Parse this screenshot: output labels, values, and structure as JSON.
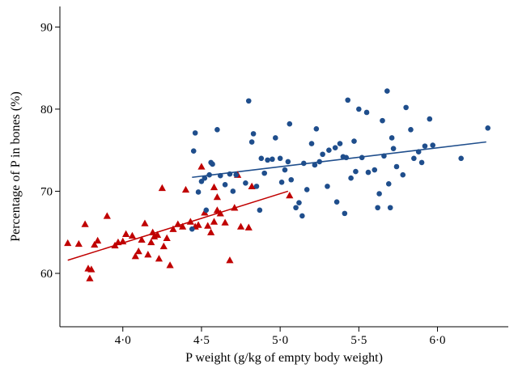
{
  "chart_data": {
    "type": "scatter",
    "xlabel": "P weight (g/kg of empty body weight)",
    "ylabel": "Percentage of P in bones (%)",
    "xlim": [
      3.6,
      6.45
    ],
    "ylim": [
      53.5,
      92.5
    ],
    "xticks": [
      4.0,
      4.5,
      5.0,
      5.5,
      6.0
    ],
    "xtick_labels": [
      "4·0",
      "4·5",
      "5·0",
      "5·5",
      "6·0"
    ],
    "yticks": [
      60,
      70,
      80,
      90
    ],
    "ytick_labels": [
      "60",
      "70",
      "80",
      "90"
    ],
    "grid": false,
    "legend": "none",
    "series": [
      {
        "marker": "triangle",
        "color": "#c00000",
        "points": [
          [
            3.65,
            63.7
          ],
          [
            3.72,
            63.6
          ],
          [
            3.76,
            66.0
          ],
          [
            3.78,
            60.6
          ],
          [
            3.79,
            59.4
          ],
          [
            3.8,
            60.5
          ],
          [
            3.82,
            63.5
          ],
          [
            3.84,
            64.0
          ],
          [
            3.9,
            67.0
          ],
          [
            3.95,
            63.4
          ],
          [
            3.97,
            63.8
          ],
          [
            4.0,
            63.9
          ],
          [
            4.02,
            64.8
          ],
          [
            4.06,
            64.6
          ],
          [
            4.08,
            62.1
          ],
          [
            4.1,
            62.7
          ],
          [
            4.12,
            64.1
          ],
          [
            4.14,
            66.1
          ],
          [
            4.16,
            62.3
          ],
          [
            4.18,
            63.8
          ],
          [
            4.19,
            65.0
          ],
          [
            4.2,
            64.5
          ],
          [
            4.22,
            64.7
          ],
          [
            4.23,
            61.8
          ],
          [
            4.25,
            70.4
          ],
          [
            4.26,
            63.3
          ],
          [
            4.28,
            64.3
          ],
          [
            4.3,
            61.0
          ],
          [
            4.32,
            65.4
          ],
          [
            4.35,
            66.0
          ],
          [
            4.38,
            65.7
          ],
          [
            4.4,
            70.2
          ],
          [
            4.43,
            66.3
          ],
          [
            4.46,
            65.7
          ],
          [
            4.48,
            65.9
          ],
          [
            4.5,
            73.0
          ],
          [
            4.52,
            67.4
          ],
          [
            4.54,
            65.8
          ],
          [
            4.56,
            65.0
          ],
          [
            4.58,
            66.3
          ],
          [
            4.58,
            70.5
          ],
          [
            4.6,
            69.3
          ],
          [
            4.6,
            67.7
          ],
          [
            4.62,
            67.3
          ],
          [
            4.65,
            66.2
          ],
          [
            4.68,
            61.6
          ],
          [
            4.71,
            68.0
          ],
          [
            4.73,
            72.0
          ],
          [
            4.75,
            65.7
          ],
          [
            4.8,
            65.6
          ],
          [
            4.82,
            70.6
          ],
          [
            5.06,
            69.5
          ]
        ]
      },
      {
        "marker": "circle",
        "color": "#1f4e8c",
        "points": [
          [
            4.44,
            65.4
          ],
          [
            4.45,
            74.9
          ],
          [
            4.46,
            77.1
          ],
          [
            4.48,
            69.9
          ],
          [
            4.5,
            71.2
          ],
          [
            4.52,
            71.6
          ],
          [
            4.53,
            67.7
          ],
          [
            4.55,
            72.0
          ],
          [
            4.56,
            73.5
          ],
          [
            4.57,
            73.3
          ],
          [
            4.6,
            77.5
          ],
          [
            4.62,
            71.9
          ],
          [
            4.65,
            70.8
          ],
          [
            4.68,
            72.1
          ],
          [
            4.7,
            70.0
          ],
          [
            4.72,
            72.0
          ],
          [
            4.78,
            71.0
          ],
          [
            4.8,
            81.0
          ],
          [
            4.82,
            76.0
          ],
          [
            4.83,
            77.0
          ],
          [
            4.85,
            70.6
          ],
          [
            4.87,
            67.7
          ],
          [
            4.88,
            74.0
          ],
          [
            4.9,
            72.2
          ],
          [
            4.92,
            73.8
          ],
          [
            4.95,
            73.9
          ],
          [
            4.97,
            76.5
          ],
          [
            5.0,
            74.0
          ],
          [
            5.01,
            71.1
          ],
          [
            5.03,
            72.6
          ],
          [
            5.05,
            73.6
          ],
          [
            5.06,
            78.2
          ],
          [
            5.07,
            71.4
          ],
          [
            5.1,
            68.0
          ],
          [
            5.12,
            68.6
          ],
          [
            5.14,
            67.0
          ],
          [
            5.15,
            73.4
          ],
          [
            5.17,
            70.2
          ],
          [
            5.2,
            75.8
          ],
          [
            5.22,
            73.2
          ],
          [
            5.23,
            77.6
          ],
          [
            5.25,
            73.6
          ],
          [
            5.27,
            74.5
          ],
          [
            5.3,
            70.6
          ],
          [
            5.31,
            75.0
          ],
          [
            5.35,
            75.3
          ],
          [
            5.36,
            68.7
          ],
          [
            5.38,
            75.8
          ],
          [
            5.4,
            74.2
          ],
          [
            5.41,
            67.3
          ],
          [
            5.42,
            74.1
          ],
          [
            5.43,
            81.1
          ],
          [
            5.45,
            71.6
          ],
          [
            5.47,
            76.1
          ],
          [
            5.48,
            72.4
          ],
          [
            5.5,
            80.0
          ],
          [
            5.52,
            74.1
          ],
          [
            5.55,
            79.6
          ],
          [
            5.56,
            72.3
          ],
          [
            5.6,
            72.6
          ],
          [
            5.62,
            68.0
          ],
          [
            5.63,
            69.7
          ],
          [
            5.65,
            78.6
          ],
          [
            5.66,
            74.3
          ],
          [
            5.68,
            82.2
          ],
          [
            5.69,
            70.9
          ],
          [
            5.7,
            68.0
          ],
          [
            5.71,
            76.5
          ],
          [
            5.72,
            75.2
          ],
          [
            5.74,
            73.0
          ],
          [
            5.78,
            72.0
          ],
          [
            5.8,
            80.2
          ],
          [
            5.83,
            77.5
          ],
          [
            5.85,
            74.0
          ],
          [
            5.88,
            74.8
          ],
          [
            5.9,
            73.5
          ],
          [
            5.92,
            75.5
          ],
          [
            5.95,
            78.8
          ],
          [
            5.97,
            75.6
          ],
          [
            6.15,
            74.0
          ],
          [
            6.32,
            77.7
          ]
        ]
      }
    ],
    "trend_lines": [
      {
        "color": "#c00000",
        "x": [
          3.65,
          5.05
        ],
        "y": [
          61.6,
          70.0
        ]
      },
      {
        "color": "#1f4e8c",
        "x": [
          4.44,
          6.31
        ],
        "y": [
          71.7,
          76.0
        ]
      }
    ]
  }
}
